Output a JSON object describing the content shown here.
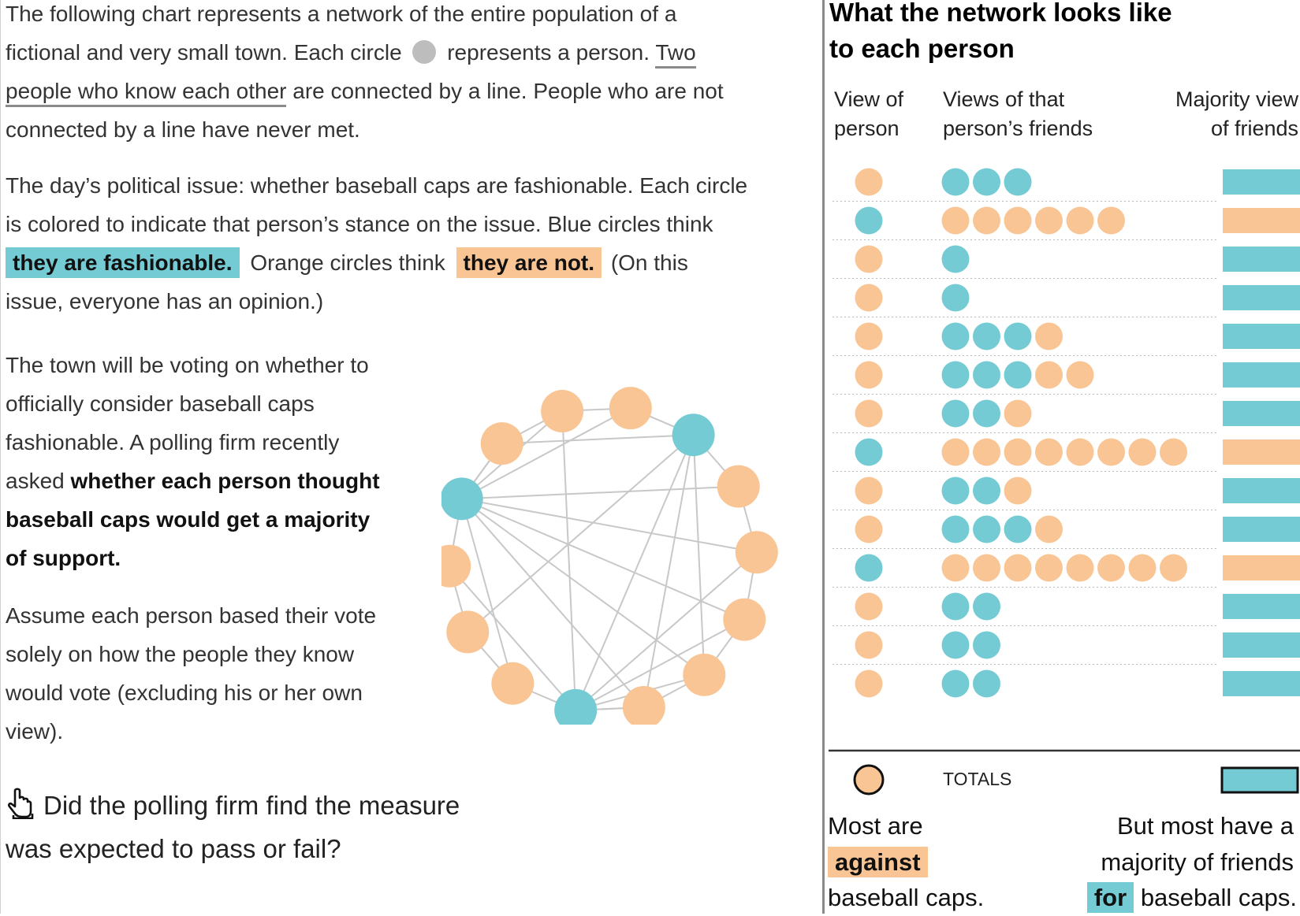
{
  "colors": {
    "fashionable": "#74cbd3",
    "not_fashionable": "#f9c594",
    "neutral": "#bdbdbd",
    "edge": "#c8c8c8"
  },
  "left": {
    "p1": {
      "a": "The following chart represents a network of the entire population of a",
      "b": "fictional and very small town. Each circle",
      "c": "represents a person.",
      "link": "Two",
      "link2": "people who know each other",
      "d": "are connected by a line. People who are not",
      "e": "connected by a line have never met."
    },
    "p2": {
      "a": "The day’s political issue: whether baseball caps are fashionable. Each circle",
      "b": "is colored to indicate that person’s stance on the issue. Blue circles think",
      "blue_tag": "they are fashionable.",
      "mid": "Orange circles think",
      "orange_tag": "they are not.",
      "tail": "(On this",
      "e": "issue, everyone has an opinion.)"
    },
    "p3": {
      "l1": "The town will be voting on whether to",
      "l2": "officially consider baseball caps",
      "l3": "fashionable. A polling firm recently",
      "l4_plain": "asked",
      "l4_bold": "whether each person thought",
      "l5": "baseball caps would get a majority",
      "l6": "of support."
    },
    "p4": {
      "l1": "Assume each person based their vote",
      "l2": "solely on how the people they know",
      "l3": "would vote (excluding his or her own",
      "l4": "view)."
    },
    "question": {
      "l1": "Did the polling firm find the measure",
      "l2": "was expected to pass or fail?",
      "icon": "pointing-hand-icon"
    }
  },
  "network": {
    "nodes": [
      "O",
      "O",
      "B",
      "O",
      "O",
      "O",
      "O",
      "O",
      "B",
      "O",
      "O",
      "O",
      "B",
      "O"
    ],
    "edges": [
      [
        12,
        0
      ],
      [
        12,
        1
      ],
      [
        12,
        3
      ],
      [
        12,
        4
      ],
      [
        12,
        5
      ],
      [
        12,
        6
      ],
      [
        12,
        7
      ],
      [
        12,
        9
      ],
      [
        12,
        11
      ],
      [
        12,
        13
      ],
      [
        2,
        1
      ],
      [
        2,
        6
      ],
      [
        2,
        7
      ],
      [
        2,
        8
      ],
      [
        2,
        10
      ],
      [
        2,
        13
      ],
      [
        8,
        0
      ],
      [
        8,
        4
      ],
      [
        8,
        5
      ],
      [
        8,
        6
      ],
      [
        8,
        7
      ],
      [
        8,
        9
      ],
      [
        8,
        11
      ],
      [
        0,
        1
      ],
      [
        1,
        2
      ],
      [
        2,
        3
      ],
      [
        3,
        4
      ],
      [
        4,
        5
      ],
      [
        5,
        6
      ],
      [
        6,
        7
      ],
      [
        7,
        8
      ],
      [
        9,
        10
      ],
      [
        10,
        11
      ],
      [
        11,
        12
      ],
      [
        12,
        13
      ],
      [
        13,
        0
      ]
    ]
  },
  "right": {
    "title_l1": "What the network looks like",
    "title_l2": "to each person",
    "col1_l1": "View of",
    "col1_l2": "person",
    "col2_l1": "Views of that",
    "col2_l2": "person’s friends",
    "col3_l1": "Majority view",
    "col3_l2": "of friends",
    "rows": [
      {
        "view": "O",
        "friends": "BBB",
        "majority": "B"
      },
      {
        "view": "B",
        "friends": "OOOOOO",
        "majority": "O"
      },
      {
        "view": "O",
        "friends": "B",
        "majority": "B"
      },
      {
        "view": "O",
        "friends": "B",
        "majority": "B"
      },
      {
        "view": "O",
        "friends": "BBBO",
        "majority": "B"
      },
      {
        "view": "O",
        "friends": "BBBOO",
        "majority": "B"
      },
      {
        "view": "O",
        "friends": "BBO",
        "majority": "B"
      },
      {
        "view": "B",
        "friends": "OOOOOOOO",
        "majority": "O"
      },
      {
        "view": "O",
        "friends": "BBO",
        "majority": "B"
      },
      {
        "view": "O",
        "friends": "BBBO",
        "majority": "B"
      },
      {
        "view": "B",
        "friends": "OOOOOOOO",
        "majority": "O"
      },
      {
        "view": "O",
        "friends": "BB",
        "majority": "B"
      },
      {
        "view": "O",
        "friends": "BB",
        "majority": "B"
      },
      {
        "view": "O",
        "friends": "BB",
        "majority": "B"
      }
    ],
    "totals_label": "TOTALS",
    "totals_view": "O",
    "totals_majority": "B",
    "footer_left_l1": "Most are",
    "footer_left_tag": "against",
    "footer_left_l3": "baseball caps.",
    "footer_right_l1": "But most have a",
    "footer_right_l2": "majority of friends",
    "footer_right_tag": "for",
    "footer_right_l3": "baseball caps."
  }
}
